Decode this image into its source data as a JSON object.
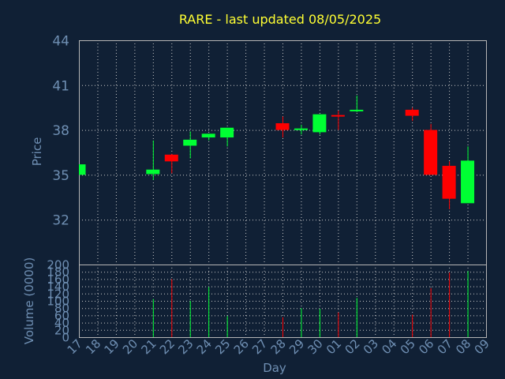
{
  "chart_data": [
    {
      "type": "candlestick",
      "title": "RARE - last updated 08/05/2025",
      "ylabel": "Price",
      "ylim": [
        29,
        44
      ],
      "yticks": [
        "32",
        "35",
        "38",
        "41",
        "44"
      ],
      "grid": true,
      "colors": {
        "up": "#00ff33",
        "down": "#ff0000",
        "background": "#102035",
        "title": "#ffff33",
        "axis_text": "#6f8fb3"
      },
      "candles": [
        {
          "day": "17",
          "open": 35.0,
          "close": 35.7,
          "high": 35.7,
          "low": 35.0
        },
        {
          "day": "21",
          "open": 35.05,
          "close": 35.35,
          "high": 37.3,
          "low": 34.65
        },
        {
          "day": "22",
          "open": 36.35,
          "close": 35.9,
          "high": 36.4,
          "low": 35.1
        },
        {
          "day": "23",
          "open": 36.95,
          "close": 37.35,
          "high": 37.9,
          "low": 36.1
        },
        {
          "day": "24",
          "open": 37.5,
          "close": 37.75,
          "high": 37.75,
          "low": 37.3
        },
        {
          "day": "25",
          "open": 37.5,
          "close": 38.15,
          "high": 38.15,
          "low": 36.9
        },
        {
          "day": "28",
          "open": 38.45,
          "close": 38.0,
          "high": 38.9,
          "low": 37.5
        },
        {
          "day": "29",
          "open": 38.0,
          "close": 38.1,
          "high": 38.35,
          "low": 37.7
        },
        {
          "day": "30",
          "open": 37.85,
          "close": 39.05,
          "high": 39.05,
          "low": 37.7
        },
        {
          "day": "01",
          "open": 39.0,
          "close": 38.95,
          "high": 39.3,
          "low": 38.0
        },
        {
          "day": "02",
          "open": 39.25,
          "close": 39.35,
          "high": 40.3,
          "low": 39.2
        },
        {
          "day": "05",
          "open": 39.35,
          "close": 38.95,
          "high": 39.5,
          "low": 38.6
        },
        {
          "day": "06",
          "open": 38.0,
          "close": 35.0,
          "high": 38.4,
          "low": 35.0
        },
        {
          "day": "07",
          "open": 35.6,
          "close": 33.4,
          "high": 35.9,
          "low": 32.7
        },
        {
          "day": "08",
          "open": 33.1,
          "close": 35.95,
          "high": 36.9,
          "low": 33.1
        }
      ]
    },
    {
      "type": "bar",
      "ylabel": "Volume (0000)",
      "xlabel": "Day",
      "ylim": [
        0,
        200
      ],
      "yticks": [
        "0",
        "20",
        "40",
        "60",
        "80",
        "100",
        "120",
        "140",
        "160",
        "180",
        "200"
      ],
      "grid": true,
      "categories": [
        "17",
        "18",
        "19",
        "20",
        "21",
        "22",
        "23",
        "24",
        "25",
        "26",
        "27",
        "28",
        "29",
        "30",
        "01",
        "02",
        "03",
        "04",
        "05",
        "06",
        "07",
        "08",
        "09"
      ],
      "bars": [
        {
          "day": "21",
          "value": 105,
          "direction": "up"
        },
        {
          "day": "22",
          "value": 160,
          "direction": "down"
        },
        {
          "day": "23",
          "value": 100,
          "direction": "up"
        },
        {
          "day": "24",
          "value": 138,
          "direction": "up"
        },
        {
          "day": "25",
          "value": 58,
          "direction": "up"
        },
        {
          "day": "28",
          "value": 55,
          "direction": "down"
        },
        {
          "day": "29",
          "value": 80,
          "direction": "up"
        },
        {
          "day": "30",
          "value": 78,
          "direction": "up"
        },
        {
          "day": "01",
          "value": 68,
          "direction": "down"
        },
        {
          "day": "02",
          "value": 108,
          "direction": "up"
        },
        {
          "day": "05",
          "value": 62,
          "direction": "down"
        },
        {
          "day": "06",
          "value": 135,
          "direction": "down"
        },
        {
          "day": "07",
          "value": 178,
          "direction": "down"
        },
        {
          "day": "08",
          "value": 182,
          "direction": "up"
        }
      ]
    }
  ]
}
